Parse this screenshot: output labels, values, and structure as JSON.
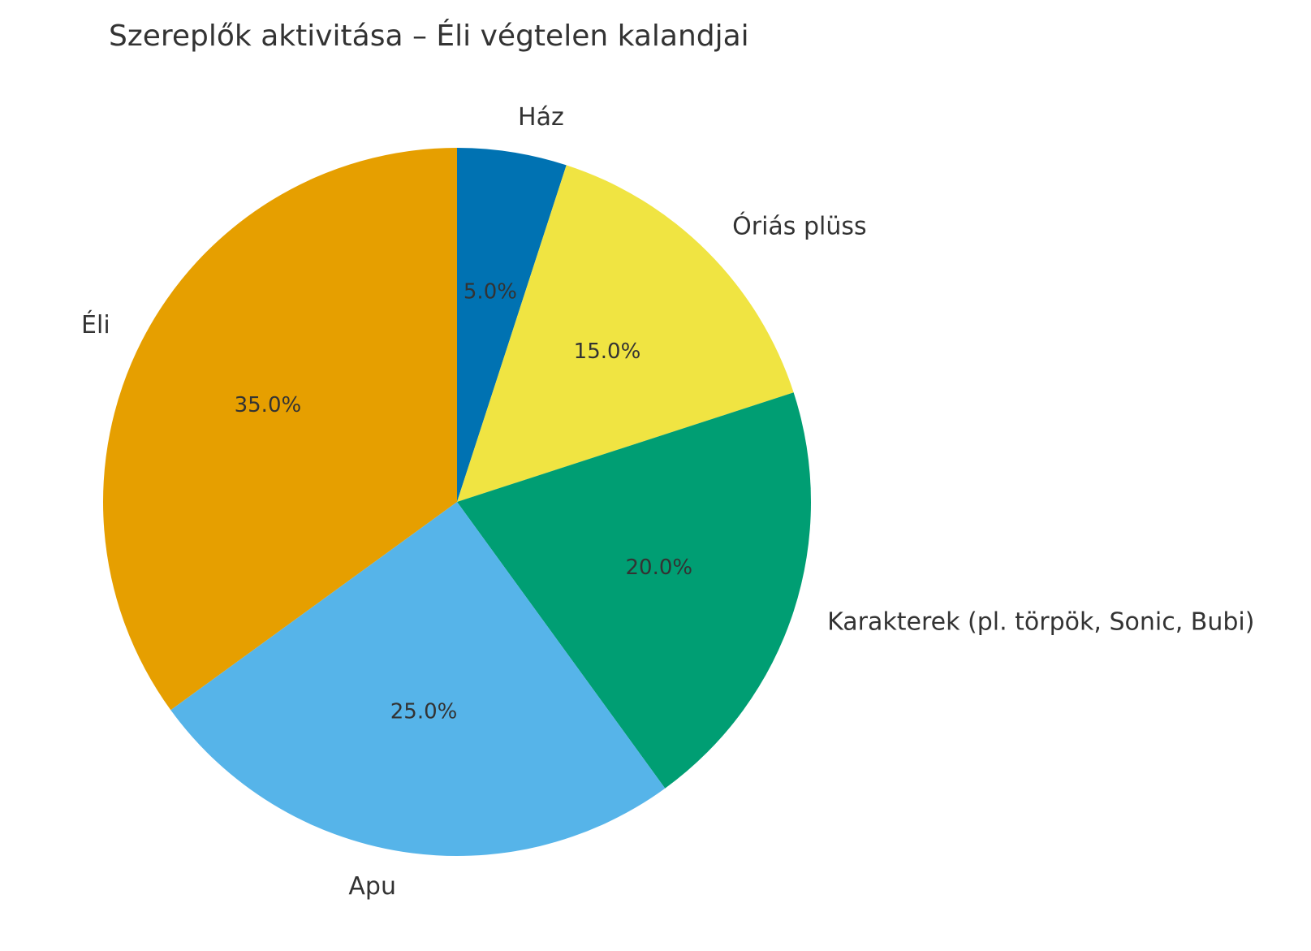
{
  "chart_data": {
    "type": "pie",
    "title": "Szereplők aktivitása – Éli végtelen kalandjai",
    "start_angle_deg": 90,
    "direction": "clockwise",
    "slices": [
      {
        "label": "Ház",
        "value": 5.0,
        "pct_label": "5.0%",
        "color": "#0072B2"
      },
      {
        "label": "Óriás plüss",
        "value": 15.0,
        "pct_label": "15.0%",
        "color": "#F0E442"
      },
      {
        "label": "Karakterek (pl. törpök, Sonic, Bubi)",
        "value": 20.0,
        "pct_label": "20.0%",
        "color": "#009E73"
      },
      {
        "label": "Apu",
        "value": 25.0,
        "pct_label": "25.0%",
        "color": "#56B4E9"
      },
      {
        "label": "Éli",
        "value": 35.0,
        "pct_label": "35.0%",
        "color": "#E69F00"
      }
    ]
  }
}
